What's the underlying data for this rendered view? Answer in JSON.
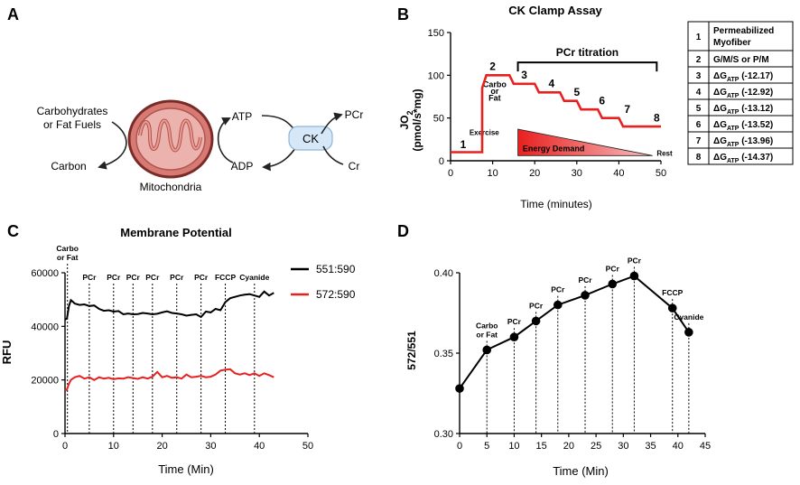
{
  "panel_letters": {
    "a": "A",
    "b": "B",
    "c": "C",
    "d": "D"
  },
  "panel_a": {
    "fuel_line1": "Carbohydrates",
    "fuel_line2": "or Fat Fuels",
    "carbon": "Carbon",
    "mito_label": "Mitochondria",
    "atp": "ATP",
    "adp": "ADP",
    "ck": "CK",
    "pcr": "PCr",
    "cr": "Cr"
  },
  "colors": {
    "red": "#e8201f",
    "mito_fill": "#d77a74",
    "mito_dark": "#7a2b28",
    "ck_fill": "#d6e8f8"
  },
  "chart_data": [
    {
      "id": "B",
      "type": "line",
      "title": "CK Clamp Assay",
      "xlabel": "Time (minutes)",
      "ylabel_line1": "JO",
      "ylabel_sub": "2",
      "ylabel_line2": "(pmol/s*mg)",
      "xlim": [
        0,
        50
      ],
      "ylim": [
        0,
        150
      ],
      "xticks": [
        0,
        10,
        20,
        30,
        40,
        50
      ],
      "yticks": [
        0,
        50,
        100,
        150
      ],
      "x": [
        0,
        7.5,
        7.5,
        8.5,
        14,
        15,
        16,
        20,
        21,
        26,
        27,
        30,
        31,
        35,
        36,
        40,
        41,
        45,
        46,
        50
      ],
      "y": [
        10,
        10,
        85,
        100,
        100,
        90,
        90,
        90,
        80,
        80,
        70,
        70,
        60,
        60,
        50,
        50,
        40,
        40,
        40,
        40
      ],
      "step_labels": [
        "1",
        "2",
        "3",
        "4",
        "5",
        "6",
        "7",
        "8"
      ],
      "step_label_x": [
        3,
        10,
        17.5,
        24,
        30,
        36,
        42,
        49
      ],
      "step_label_y": [
        15,
        106,
        96,
        86,
        76,
        66,
        56,
        46
      ],
      "annotations": {
        "pcr_titration": "PCr titration",
        "bracket_x": [
          16,
          49
        ],
        "bracket_y": 115,
        "carbo": "Carbo",
        "or": "or",
        "fat": "Fat",
        "exercise": "Exercise",
        "energy_demand": "Energy Demand",
        "rest": "Rest"
      },
      "color": "#e8201f"
    },
    {
      "id": "C",
      "type": "line",
      "title": "Membrane Potential",
      "xlabel": "Time (Min)",
      "ylabel": "RFU",
      "xlim": [
        0,
        50
      ],
      "ylim": [
        0,
        60000
      ],
      "xticks": [
        0,
        10,
        20,
        30,
        40,
        50
      ],
      "yticks": [
        0,
        20000,
        40000,
        60000
      ],
      "ytick_labels": [
        "0",
        "20000",
        "40000",
        "60000"
      ],
      "series": [
        {
          "name": "551:590",
          "color": "#000000",
          "x": [
            0,
            0.4,
            0.8,
            1.2,
            1.6,
            2,
            3,
            4,
            5,
            6,
            7,
            8,
            9,
            10,
            11,
            12,
            13,
            14,
            15,
            16,
            17,
            18,
            19,
            20,
            21,
            22,
            23,
            24,
            25,
            26,
            27,
            28,
            29,
            30,
            31,
            32,
            33,
            34,
            35,
            36,
            37,
            38,
            39,
            40,
            41,
            42,
            43
          ],
          "values": [
            42500,
            43000,
            47500,
            49800,
            49200,
            48500,
            48000,
            48200,
            47600,
            47800,
            46500,
            45800,
            46000,
            45500,
            45700,
            44500,
            44800,
            44500,
            44600,
            45000,
            44800,
            44500,
            44700,
            45200,
            45600,
            45000,
            44800,
            44500,
            44000,
            44300,
            44500,
            43500,
            45500,
            45200,
            46500,
            46000,
            49000,
            50500,
            51000,
            51500,
            51800,
            52000,
            51500,
            51000,
            53000,
            51500,
            52500
          ]
        },
        {
          "name": "572:590",
          "color": "#e8201f",
          "x": [
            0,
            0.4,
            0.8,
            1.2,
            1.6,
            2,
            3,
            4,
            5,
            6,
            7,
            8,
            9,
            10,
            11,
            12,
            13,
            14,
            15,
            16,
            17,
            18,
            19,
            20,
            21,
            22,
            23,
            24,
            25,
            26,
            27,
            28,
            29,
            30,
            31,
            32,
            33,
            34,
            35,
            36,
            37,
            38,
            39,
            40,
            41,
            42,
            43
          ],
          "values": [
            16000,
            16500,
            18500,
            20000,
            20500,
            21000,
            21500,
            20500,
            21000,
            20000,
            21000,
            20500,
            20800,
            20300,
            20600,
            20500,
            21000,
            20700,
            20400,
            21000,
            20500,
            21200,
            23000,
            21000,
            21500,
            20800,
            21000,
            20500,
            22000,
            21000,
            21200,
            21500,
            21000,
            21200,
            22000,
            23500,
            23800,
            24000,
            22500,
            22000,
            22500,
            21800,
            22500,
            21500,
            22500,
            21800,
            21000
          ]
        }
      ],
      "event_x": [
        0.5,
        5,
        10,
        14,
        18,
        23,
        28,
        33,
        39
      ],
      "event_labels": [
        "Carbo\nor Fat",
        "PCr",
        "PCr",
        "PCr",
        "PCr",
        "PCr",
        "PCr",
        "FCCP",
        "Cyanide"
      ]
    },
    {
      "id": "D",
      "type": "line",
      "xlabel": "Time (Min)",
      "ylabel": "572/551",
      "xlim": [
        0,
        45
      ],
      "ylim": [
        0.3,
        0.4
      ],
      "xticks": [
        0,
        5,
        10,
        15,
        20,
        25,
        30,
        35,
        40,
        45
      ],
      "yticks": [
        0.3,
        0.35,
        0.4
      ],
      "ytick_labels": [
        "0.30",
        "0.35",
        "0.40"
      ],
      "x": [
        0,
        5,
        10,
        14,
        18,
        23,
        28,
        32,
        39,
        42
      ],
      "values": [
        0.328,
        0.352,
        0.36,
        0.37,
        0.38,
        0.386,
        0.393,
        0.398,
        0.378,
        0.363
      ],
      "event_x": [
        5,
        10,
        14,
        18,
        23,
        28,
        32,
        39,
        42
      ],
      "event_labels": [
        "Carbo\nor Fat",
        "PCr",
        "PCr",
        "PCr",
        "PCr",
        "PCr",
        "PCr",
        "FCCP",
        "Cyanide"
      ],
      "color": "#000000"
    }
  ],
  "table": {
    "rows": [
      {
        "num": "1",
        "line1": "Permeabilized",
        "line2": "Myofiber"
      },
      {
        "num": "2",
        "line1": "G/M/S or P/M",
        "line2": ""
      },
      {
        "num": "3",
        "dg": "ΔG",
        "sub": "ATP",
        "val": "(-12.17)"
      },
      {
        "num": "4",
        "dg": "ΔG",
        "sub": "ATP",
        "val": "(-12.92)"
      },
      {
        "num": "5",
        "dg": "ΔG",
        "sub": "ATP",
        "val": "(-13.12)"
      },
      {
        "num": "6",
        "dg": "ΔG",
        "sub": "ATP",
        "val": "(-13.52)"
      },
      {
        "num": "7",
        "dg": "ΔG",
        "sub": "ATP",
        "val": "(-13.96)"
      },
      {
        "num": "8",
        "dg": "ΔG",
        "sub": "ATP",
        "val": "(-14.37)"
      }
    ]
  }
}
